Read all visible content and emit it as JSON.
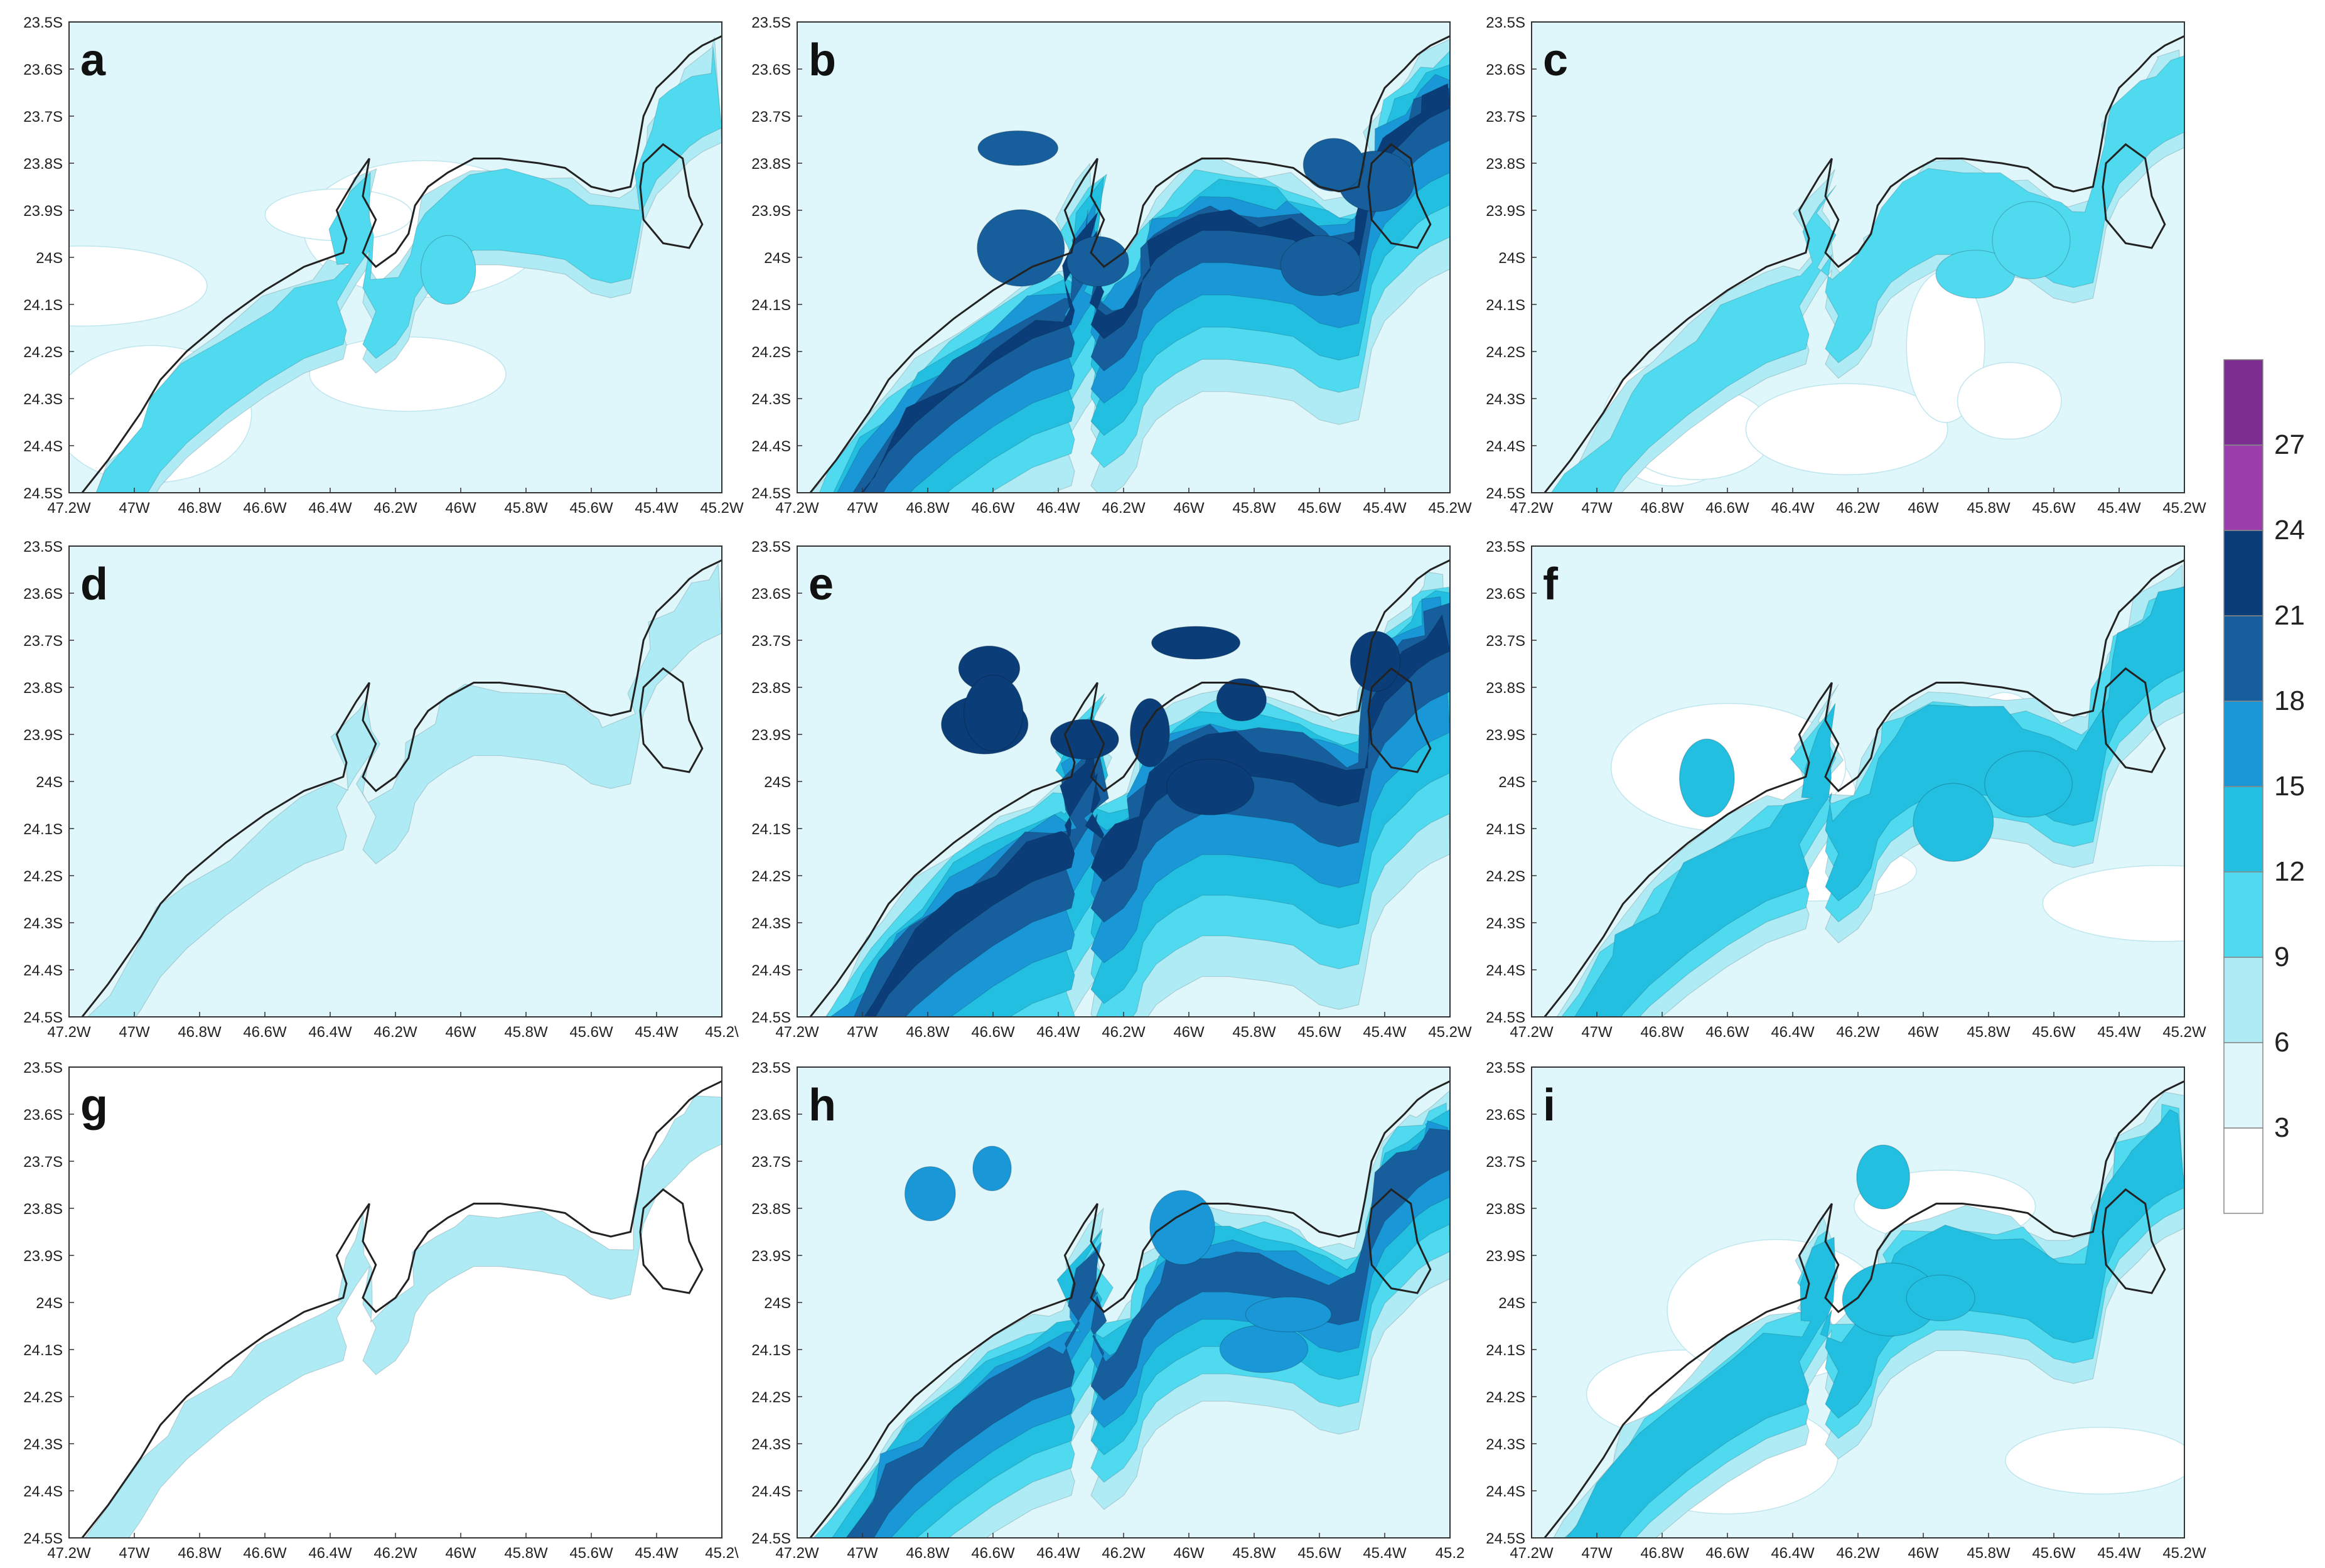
{
  "figure": {
    "panels": [
      {
        "letter": "a",
        "intensity": 0.45,
        "seed": 1
      },
      {
        "letter": "b",
        "intensity": 1.7,
        "seed": 2
      },
      {
        "letter": "c",
        "intensity": 0.5,
        "seed": 3
      },
      {
        "letter": "d",
        "intensity": 0.12,
        "seed": 4
      },
      {
        "letter": "e",
        "intensity": 2.3,
        "seed": 5
      },
      {
        "letter": "f",
        "intensity": 0.9,
        "seed": 6
      },
      {
        "letter": "g",
        "intensity": 0.02,
        "seed": 7
      },
      {
        "letter": "h",
        "intensity": 1.35,
        "seed": 8
      },
      {
        "letter": "i",
        "intensity": 0.85,
        "seed": 9
      }
    ],
    "lat_ticks": [
      "23.5S",
      "23.6S",
      "23.7S",
      "23.8S",
      "23.9S",
      "24S",
      "24.1S",
      "24.2S",
      "24.3S",
      "24.4S",
      "24.5S"
    ],
    "lon_ticks_full": [
      "47.2W",
      "47W",
      "46.8W",
      "46.6W",
      "46.4W",
      "46.2W",
      "46W",
      "45.8W",
      "45.6W",
      "45.4W",
      "45.2W"
    ],
    "lon_ticks_d": [
      "47.2W",
      "47W",
      "46.8W",
      "46.6W",
      "46.4W",
      "46.2W",
      "46W",
      "45.8W",
      "45.6W",
      "45.4W",
      "45.2\\"
    ],
    "lon_ticks_e": [
      "47.2W",
      "47W",
      "46.8W",
      "46.6W",
      "46.4W",
      "46.2W",
      "46W",
      "45.8W",
      "45.6W",
      "45.4W",
      "45.2W"
    ],
    "lon_ticks_h": [
      "47.2W",
      "47W",
      "46.8W",
      "46.6W",
      "46.4W",
      "46.2W",
      "46W",
      "45.8W",
      "45.6W",
      "45.4W",
      "45.2"
    ]
  },
  "colorbar": {
    "labels": [
      "3",
      "6",
      "9",
      "12",
      "15",
      "18",
      "21",
      "24",
      "27"
    ],
    "colors": [
      "#ffffff",
      "#dff7fb",
      "#aeebf5",
      "#4fdaf0",
      "#22bfe1",
      "#1a97d6",
      "#165f9c",
      "#0b3e78",
      "#9a3eab",
      "#7b2e8f"
    ]
  },
  "coast": {
    "color": "#222222"
  }
}
